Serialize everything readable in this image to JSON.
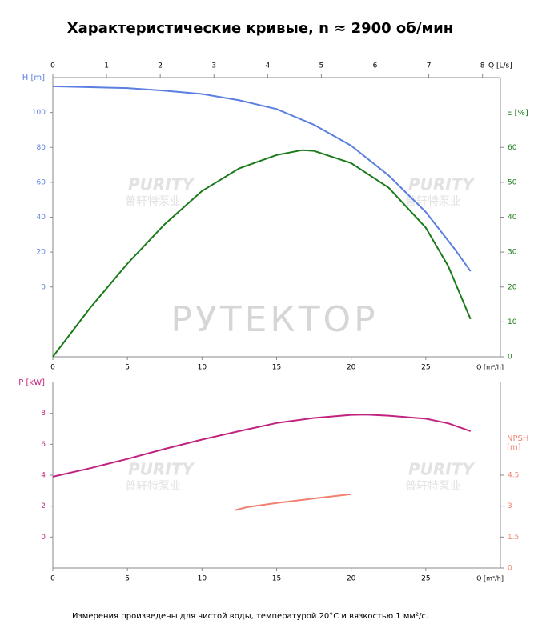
{
  "title": "Характеристические кривые, n ≈ 2900 об/мин",
  "footnote": "Измерения произведены для чистой воды, температурой 20°C и вязкостью 1 мм²/с.",
  "watermarks": [
    "PURITY",
    "普轩特泵业",
    "РУТЕКТОР"
  ],
  "chart_data": [
    {
      "type": "line",
      "xlabel": "Q [m³/h]",
      "xlim": [
        0,
        30
      ],
      "xticks": [
        0,
        5,
        10,
        15,
        20,
        25
      ],
      "x2label": "Q [L/s]",
      "x2lim": [
        0,
        8.333
      ],
      "x2ticks": [
        0,
        1,
        2,
        3,
        4,
        5,
        6,
        7,
        8
      ],
      "ylabel": "H [m]",
      "ylim": [
        -40,
        120
      ],
      "yticks": [
        0,
        20,
        40,
        60,
        80,
        100
      ],
      "ycolor": "#5b7fe0",
      "y2label": [
        "E [%]"
      ],
      "y2lim": [
        0,
        80
      ],
      "y2ticks": [
        0,
        10,
        20,
        30,
        40,
        50,
        60
      ],
      "y2color": "#1a7a1a",
      "series": [
        {
          "color": "#5b7fe0",
          "axis": "y",
          "x": [
            0,
            2.5,
            5,
            7.5,
            10,
            12.5,
            15,
            17.5,
            20,
            22.5,
            25,
            27,
            28
          ],
          "values": [
            115,
            114.5,
            114,
            112.5,
            110.6,
            107,
            102,
            93,
            81,
            64,
            43,
            21,
            9
          ]
        },
        {
          "color": "#1a7a1a",
          "axis": "y2",
          "x": [
            0,
            2.5,
            5,
            7.5,
            10,
            12.5,
            15,
            16.7,
            17.5,
            20,
            22.5,
            25,
            26.5,
            28
          ],
          "values": [
            0,
            14,
            26.7,
            38,
            47.5,
            54,
            57.8,
            59.2,
            59,
            55.5,
            48.5,
            37,
            26,
            10.8
          ]
        }
      ]
    },
    {
      "type": "line",
      "xlabel": "Q [m³/h]",
      "xlim": [
        0,
        30
      ],
      "xticks": [
        0,
        5,
        10,
        15,
        20,
        25
      ],
      "ylabel": "P [kW]",
      "ylim": [
        -2,
        10
      ],
      "yticks": [
        0,
        2,
        4,
        6,
        8
      ],
      "ycolor": "#c0237f",
      "y2label": [
        "NPSH",
        "[m]"
      ],
      "y2lim": [
        0,
        9
      ],
      "y2ticks": [
        0,
        1.5,
        3,
        4.5
      ],
      "y2color": "#f08070",
      "series": [
        {
          "color": "#c0237f",
          "axis": "y",
          "x": [
            0,
            2.5,
            5,
            7.5,
            10,
            12.5,
            15,
            17.5,
            20,
            21,
            22.5,
            25,
            26.5,
            28
          ],
          "values": [
            3.9,
            4.45,
            5.05,
            5.7,
            6.3,
            6.85,
            7.37,
            7.7,
            7.9,
            7.92,
            7.85,
            7.65,
            7.35,
            6.85
          ]
        },
        {
          "color": "#f08070",
          "axis": "y2",
          "x": [
            12.2,
            13,
            15,
            17.5,
            20
          ],
          "values": [
            2.8,
            2.95,
            3.15,
            3.37,
            3.58
          ]
        }
      ]
    }
  ]
}
